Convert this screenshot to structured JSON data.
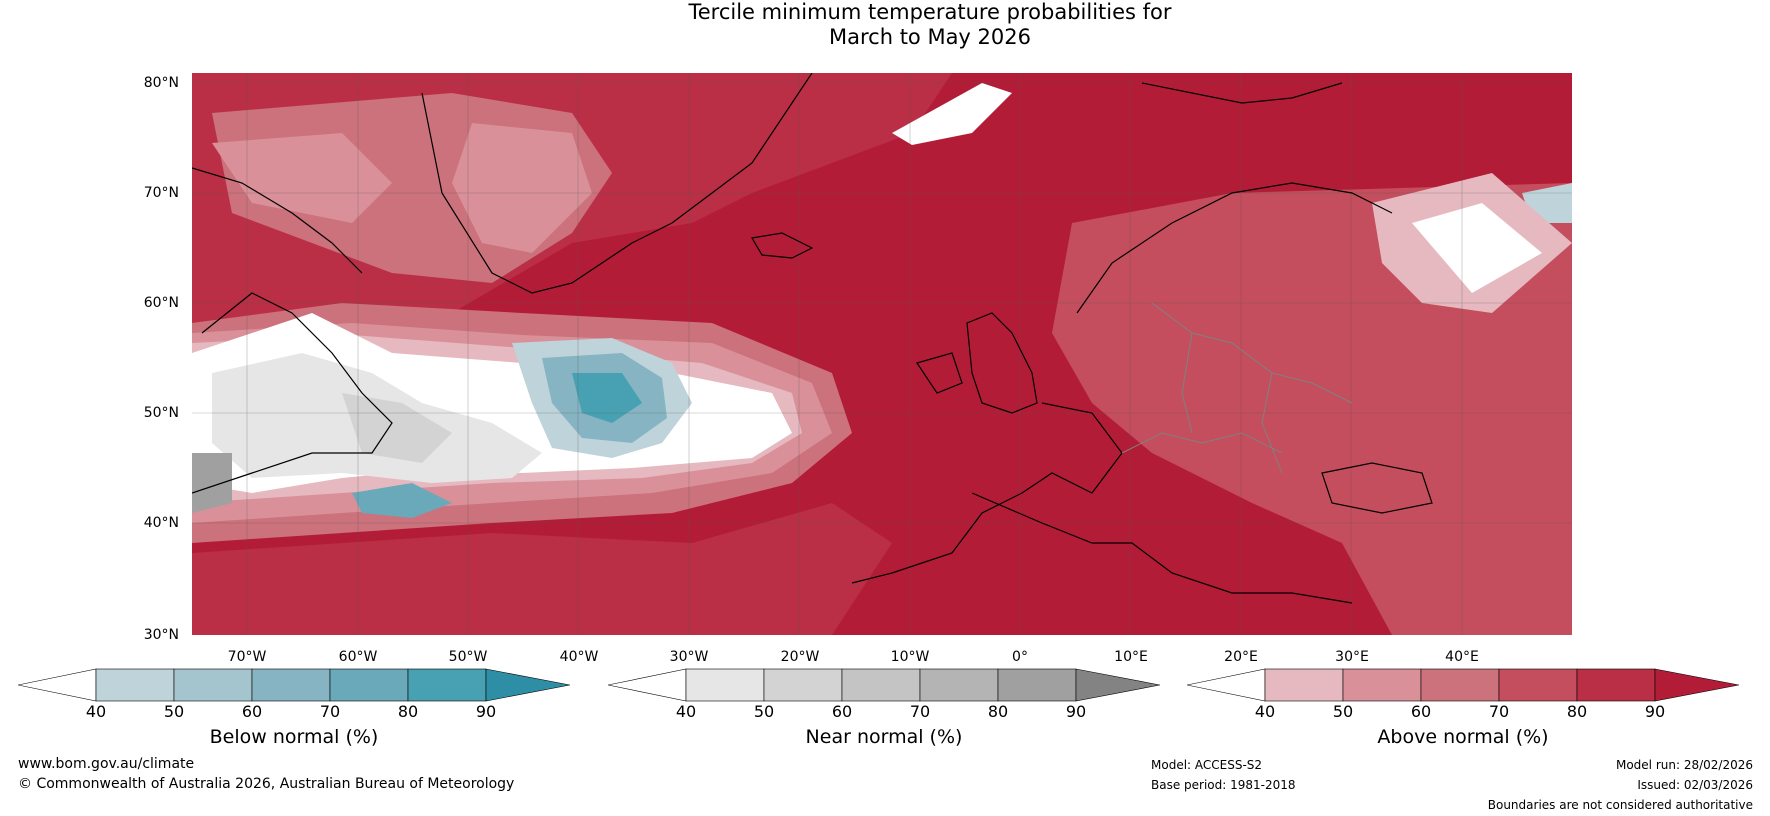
{
  "title": {
    "line1": "Tercile minimum temperature probabilities for",
    "line2": "March to May 2026"
  },
  "map": {
    "lat_labels": [
      "80°N",
      "70°N",
      "60°N",
      "50°N",
      "40°N",
      "30°N"
    ],
    "lon_labels": [
      "70°W",
      "60°W",
      "50°W",
      "40°W",
      "30°W",
      "20°W",
      "10°W",
      "0°",
      "10°E",
      "20°E",
      "30°E",
      "40°E"
    ],
    "colors": {
      "ocean_dark_red": "#b31c37",
      "land_outline": "#000000",
      "border": "#808080"
    }
  },
  "legends": [
    {
      "title": "Below normal (%)",
      "ticks": [
        "40",
        "50",
        "60",
        "70",
        "80",
        "90"
      ],
      "colors": [
        "#ffffff",
        "#bed4da",
        "#a4c5cd",
        "#86b4c2",
        "#6aa9b9",
        "#48a1b2",
        "#2d8ea5"
      ]
    },
    {
      "title": "Near normal (%)",
      "ticks": [
        "40",
        "50",
        "60",
        "70",
        "80",
        "90"
      ],
      "colors": [
        "#ffffff",
        "#e6e6e6",
        "#d3d3d3",
        "#c4c4c4",
        "#b4b4b4",
        "#a0a0a0",
        "#838383"
      ]
    },
    {
      "title": "Above normal (%)",
      "ticks": [
        "40",
        "50",
        "60",
        "70",
        "80",
        "90"
      ],
      "colors": [
        "#ffffff",
        "#e6b9c0",
        "#d99099",
        "#cc727c",
        "#c44e5d",
        "#ba2f45",
        "#b31c37"
      ]
    }
  ],
  "footer": {
    "website": "www.bom.gov.au/climate",
    "copyright": "© Commonwealth of Australia 2026, Australian Bureau of Meteorology",
    "model": "Model: ACCESS-S2",
    "base_period": "Base period: 1981-2018",
    "model_run": "Model run: 28/02/2026",
    "issued": "Issued: 02/03/2026",
    "disclaimer": "Boundaries are not considered authoritative"
  }
}
